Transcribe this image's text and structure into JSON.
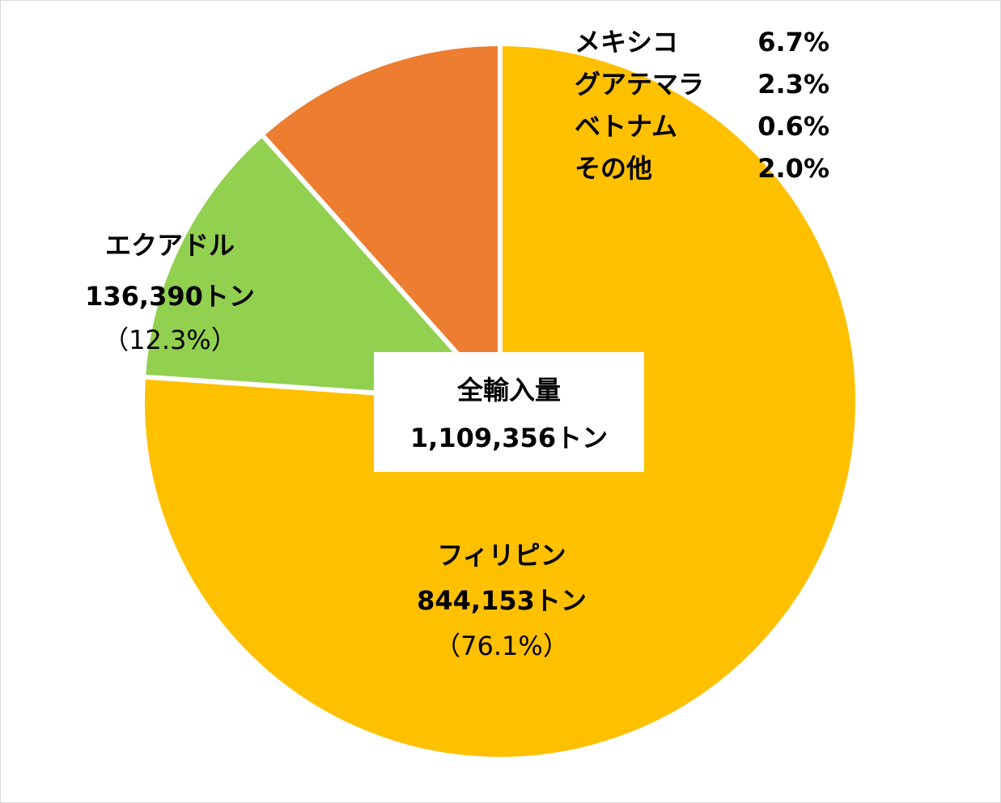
{
  "chart_data": {
    "type": "pie",
    "total_label": "全輸入量",
    "total_value_text": "1,109,356トン",
    "slices": [
      {
        "name": "フィリピン",
        "value": 844153,
        "value_text": "844,153トン",
        "percent": 76.1,
        "percent_text": "（76.1%）",
        "color": "#FFC000"
      },
      {
        "name": "エクアドル",
        "value": 136390,
        "value_text": "136,390トン",
        "percent": 12.3,
        "percent_text": "（12.3%）",
        "color": "#92D050"
      },
      {
        "name": "その他計",
        "percent": 11.6,
        "color": "#ED7D31"
      }
    ],
    "other_breakdown": [
      {
        "name": "メキシコ",
        "percent": 6.7,
        "percent_text": "6.7%"
      },
      {
        "name": "グアテマラ",
        "percent": 2.3,
        "percent_text": "2.3%"
      },
      {
        "name": "ベトナム",
        "percent": 0.6,
        "percent_text": "0.6%"
      },
      {
        "name": "その他",
        "percent": 2.0,
        "percent_text": "2.0%"
      }
    ]
  }
}
